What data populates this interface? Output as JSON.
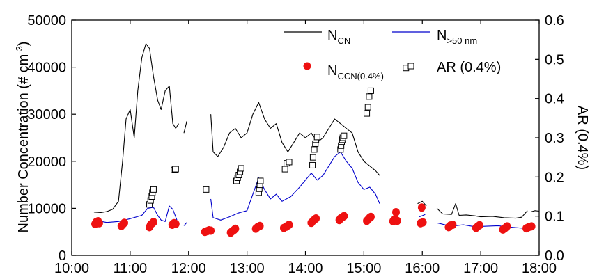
{
  "chart_data": {
    "type": "line",
    "x_axis": {
      "label": "",
      "ticks": [
        "10:00",
        "11:00",
        "12:00",
        "13:00",
        "14:00",
        "15:00",
        "16:00",
        "17:00",
        "18:00"
      ],
      "range_hours": [
        10,
        18
      ]
    },
    "y_left": {
      "label": "Number Concentration (# cm",
      "label_sup": "-3",
      "label_close": ")",
      "range": [
        0,
        50000
      ],
      "ticks": [
        "0",
        "10000",
        "20000",
        "30000",
        "40000",
        "50000"
      ]
    },
    "y_right": {
      "label": "AR (0.4%)",
      "range": [
        0,
        0.6
      ],
      "ticks": [
        "0.0",
        "0.1",
        "0.2",
        "0.3",
        "0.4",
        "0.5",
        "0.6"
      ]
    },
    "legend": {
      "n_cn": {
        "main": "N",
        "sub": "CN"
      },
      "n_50": {
        "main": "N",
        "sub": ">50 nm"
      },
      "n_ccn": {
        "main": "N",
        "sub": "CCN(0.4%)"
      },
      "ar": {
        "text": "AR (0.4%)"
      }
    },
    "colors": {
      "n_cn": "#000000",
      "n_50": "#0000cc",
      "n_ccn": "#ee1111",
      "ar": "#000000"
    },
    "series": [
      {
        "key": "n_cn",
        "axis": "left",
        "segments": [
          [
            [
              10.38,
              9200
            ],
            [
              10.5,
              9100
            ],
            [
              10.6,
              9300
            ],
            [
              10.7,
              9800
            ],
            [
              10.8,
              11500
            ],
            [
              10.87,
              20000
            ],
            [
              10.93,
              29000
            ],
            [
              11.0,
              31000
            ],
            [
              11.07,
              25000
            ],
            [
              11.13,
              35000
            ],
            [
              11.2,
              42000
            ],
            [
              11.27,
              45000
            ],
            [
              11.33,
              44000
            ],
            [
              11.4,
              38000
            ],
            [
              11.47,
              33000
            ],
            [
              11.53,
              31000
            ],
            [
              11.6,
              35000
            ],
            [
              11.67,
              36000
            ],
            [
              11.73,
              28000
            ],
            [
              11.78,
              27000
            ],
            [
              11.83,
              28000
            ]
          ],
          [
            [
              11.92,
              26000
            ],
            [
              11.97,
              28500
            ]
          ],
          [
            [
              12.38,
              30000
            ],
            [
              12.42,
              22000
            ],
            [
              12.5,
              21000
            ],
            [
              12.6,
              23000
            ],
            [
              12.7,
              26000
            ],
            [
              12.8,
              27000
            ],
            [
              12.9,
              25000
            ],
            [
              13.0,
              26000
            ],
            [
              13.1,
              30000
            ],
            [
              13.2,
              32500
            ],
            [
              13.3,
              29000
            ],
            [
              13.4,
              27000
            ],
            [
              13.5,
              28000
            ],
            [
              13.6,
              24000
            ],
            [
              13.7,
              22000
            ],
            [
              13.8,
              24000
            ],
            [
              13.9,
              26000
            ],
            [
              14.0,
              25000
            ],
            [
              14.1,
              26000
            ],
            [
              14.2,
              24000
            ],
            [
              14.3,
              25000
            ],
            [
              14.4,
              27000
            ],
            [
              14.5,
              29000
            ],
            [
              14.6,
              28000
            ],
            [
              14.7,
              27000
            ],
            [
              14.8,
              26000
            ],
            [
              14.9,
              22000
            ],
            [
              15.0,
              20000
            ],
            [
              15.1,
              19000
            ],
            [
              15.2,
              18000
            ],
            [
              15.27,
              17000
            ]
          ],
          [
            [
              15.92,
              11000
            ],
            [
              16.0,
              11500
            ],
            [
              16.07,
              10500
            ]
          ],
          [
            [
              16.25,
              10000
            ],
            [
              16.35,
              8800
            ],
            [
              16.5,
              8700
            ],
            [
              16.57,
              11000
            ],
            [
              16.63,
              8500
            ],
            [
              16.75,
              8600
            ],
            [
              16.9,
              8400
            ],
            [
              17.0,
              8200
            ],
            [
              17.2,
              8300
            ],
            [
              17.4,
              8000
            ],
            [
              17.6,
              7900
            ],
            [
              17.7,
              8100
            ],
            [
              17.8,
              9500
            ]
          ],
          [
            [
              17.87,
              9300
            ],
            [
              17.93,
              9500
            ],
            [
              18.0,
              9400
            ]
          ]
        ]
      },
      {
        "key": "n_50",
        "axis": "left",
        "segments": [
          [
            [
              10.38,
              7500
            ],
            [
              10.6,
              7000
            ],
            [
              10.8,
              7200
            ],
            [
              11.0,
              7800
            ],
            [
              11.2,
              8500
            ],
            [
              11.3,
              10000
            ],
            [
              11.4,
              10200
            ],
            [
              11.47,
              8500
            ],
            [
              11.53,
              7500
            ],
            [
              11.6,
              7200
            ],
            [
              11.67,
              10500
            ],
            [
              11.73,
              9800
            ],
            [
              11.8,
              7500
            ]
          ],
          [
            [
              11.92,
              6300
            ],
            [
              11.97,
              7000
            ]
          ],
          [
            [
              12.38,
              12000
            ],
            [
              12.42,
              8000
            ],
            [
              12.55,
              7500
            ],
            [
              12.7,
              8200
            ],
            [
              12.85,
              9000
            ],
            [
              13.0,
              9500
            ],
            [
              13.1,
              13000
            ],
            [
              13.2,
              16500
            ],
            [
              13.3,
              14000
            ],
            [
              13.4,
              12000
            ],
            [
              13.5,
              13000
            ],
            [
              13.6,
              11500
            ],
            [
              13.75,
              12500
            ],
            [
              13.9,
              14500
            ],
            [
              14.0,
              16000
            ],
            [
              14.1,
              17500
            ],
            [
              14.2,
              16000
            ],
            [
              14.3,
              17000
            ],
            [
              14.4,
              19000
            ],
            [
              14.5,
              21000
            ],
            [
              14.6,
              22000
            ],
            [
              14.7,
              20000
            ],
            [
              14.8,
              18500
            ],
            [
              14.9,
              15500
            ],
            [
              15.0,
              14000
            ],
            [
              15.1,
              14500
            ],
            [
              15.2,
              13000
            ],
            [
              15.27,
              11000
            ]
          ],
          [
            [
              15.95,
              8200
            ],
            [
              16.05,
              8700
            ]
          ],
          [
            [
              16.25,
              6900
            ],
            [
              16.5,
              6200
            ],
            [
              16.7,
              6500
            ],
            [
              16.9,
              6100
            ],
            [
              17.1,
              6200
            ],
            [
              17.3,
              6300
            ],
            [
              17.5,
              6000
            ],
            [
              17.7,
              5800
            ],
            [
              17.85,
              5900
            ]
          ]
        ]
      }
    ],
    "ccn_points": [
      [
        10.4,
        0.08
      ],
      [
        10.42,
        0.085
      ],
      [
        10.45,
        0.087
      ],
      [
        10.47,
        0.082
      ],
      [
        10.85,
        0.075
      ],
      [
        10.88,
        0.08
      ],
      [
        10.9,
        0.083
      ],
      [
        11.33,
        0.072
      ],
      [
        11.35,
        0.078
      ],
      [
        11.38,
        0.082
      ],
      [
        11.4,
        0.085
      ],
      [
        11.72,
        0.078
      ],
      [
        11.75,
        0.082
      ],
      [
        11.78,
        0.08
      ],
      [
        12.28,
        0.06
      ],
      [
        12.32,
        0.062
      ],
      [
        12.35,
        0.064
      ],
      [
        12.38,
        0.063
      ],
      [
        12.72,
        0.058
      ],
      [
        12.75,
        0.062
      ],
      [
        12.78,
        0.065
      ],
      [
        12.8,
        0.068
      ],
      [
        13.15,
        0.068
      ],
      [
        13.18,
        0.072
      ],
      [
        13.22,
        0.075
      ],
      [
        13.63,
        0.07
      ],
      [
        13.67,
        0.073
      ],
      [
        13.7,
        0.076
      ],
      [
        13.72,
        0.078
      ],
      [
        14.1,
        0.083
      ],
      [
        14.13,
        0.088
      ],
      [
        14.16,
        0.092
      ],
      [
        14.18,
        0.094
      ],
      [
        14.58,
        0.09
      ],
      [
        14.6,
        0.094
      ],
      [
        14.63,
        0.097
      ],
      [
        14.66,
        0.1
      ],
      [
        15.05,
        0.088
      ],
      [
        15.08,
        0.093
      ],
      [
        15.1,
        0.096
      ],
      [
        15.12,
        0.098
      ],
      [
        15.5,
        0.087
      ],
      [
        15.53,
        0.092
      ],
      [
        15.55,
        0.11
      ],
      [
        15.57,
        0.088
      ],
      [
        15.97,
        0.082
      ],
      [
        15.99,
        0.122
      ],
      [
        16.01,
        0.084
      ],
      [
        16.45,
        0.072
      ],
      [
        16.48,
        0.076
      ],
      [
        16.52,
        0.078
      ],
      [
        16.92,
        0.07
      ],
      [
        16.95,
        0.074
      ],
      [
        16.98,
        0.077
      ],
      [
        17.38,
        0.066
      ],
      [
        17.42,
        0.07
      ],
      [
        17.45,
        0.074
      ],
      [
        17.78,
        0.069
      ],
      [
        17.82,
        0.072
      ],
      [
        17.87,
        0.074
      ]
    ],
    "ar_points": [
      [
        11.33,
        0.13
      ],
      [
        11.35,
        0.14
      ],
      [
        11.37,
        0.15
      ],
      [
        11.38,
        0.16
      ],
      [
        11.4,
        0.168
      ],
      [
        11.75,
        0.218
      ],
      [
        11.77,
        0.219
      ],
      [
        11.78,
        0.22
      ],
      [
        12.3,
        0.168
      ],
      [
        12.82,
        0.19
      ],
      [
        12.84,
        0.198
      ],
      [
        12.86,
        0.205
      ],
      [
        12.88,
        0.213
      ],
      [
        12.9,
        0.222
      ],
      [
        13.2,
        0.16
      ],
      [
        13.21,
        0.17
      ],
      [
        13.22,
        0.18
      ],
      [
        13.23,
        0.19
      ],
      [
        13.65,
        0.22
      ],
      [
        13.68,
        0.235
      ],
      [
        13.72,
        0.238
      ],
      [
        14.12,
        0.23
      ],
      [
        14.13,
        0.25
      ],
      [
        14.15,
        0.27
      ],
      [
        14.17,
        0.285
      ],
      [
        14.18,
        0.295
      ],
      [
        14.2,
        0.302
      ],
      [
        14.6,
        0.27
      ],
      [
        14.61,
        0.28
      ],
      [
        14.62,
        0.29
      ],
      [
        14.63,
        0.295
      ],
      [
        14.64,
        0.3
      ],
      [
        14.66,
        0.305
      ],
      [
        15.05,
        0.362
      ],
      [
        15.07,
        0.378
      ],
      [
        15.09,
        0.405
      ],
      [
        15.12,
        0.42
      ],
      [
        15.72,
        0.478
      ]
    ]
  }
}
